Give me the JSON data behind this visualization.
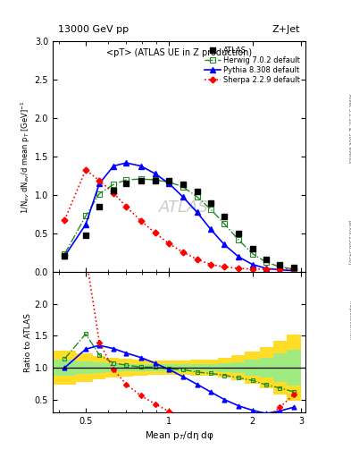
{
  "title_top": "13000 GeV pp",
  "title_right": "Z+Jet",
  "subtitle": "<pT> (ATLAS UE in Z production)",
  "ylabel_main": "1/N$_{ev}$ dN$_{ev}$/d mean p$_T$ [GeV]$^{-1}$",
  "ylabel_ratio": "Ratio to ATLAS",
  "xlabel": "Mean p$_{T}$/dη dφ",
  "right_label": "Rivet 3.1.10, ≥ 300k events",
  "arxiv_label": "[arXiv:1306.3436]",
  "mcplots_label": "mcplots.cern.ch",
  "watermark": "ATLAS",
  "atlas_x": [
    0.42,
    0.5,
    0.56,
    0.63,
    0.7,
    0.79,
    0.89,
    1.0,
    1.12,
    1.26,
    1.41,
    1.58,
    1.78,
    2.0,
    2.24,
    2.51,
    2.82
  ],
  "atlas_y": [
    0.21,
    0.48,
    0.85,
    1.06,
    1.15,
    1.19,
    1.19,
    1.19,
    1.14,
    1.05,
    0.9,
    0.72,
    0.5,
    0.3,
    0.17,
    0.1,
    0.06
  ],
  "herwig_x": [
    0.42,
    0.5,
    0.56,
    0.63,
    0.7,
    0.79,
    0.89,
    1.0,
    1.12,
    1.26,
    1.41,
    1.58,
    1.78,
    2.0,
    2.24,
    2.51,
    2.82
  ],
  "herwig_y": [
    0.24,
    0.73,
    1.02,
    1.14,
    1.2,
    1.21,
    1.2,
    1.17,
    1.11,
    0.98,
    0.82,
    0.63,
    0.42,
    0.24,
    0.13,
    0.07,
    0.04
  ],
  "pythia_x": [
    0.42,
    0.5,
    0.56,
    0.63,
    0.7,
    0.79,
    0.89,
    1.0,
    1.12,
    1.26,
    1.41,
    1.58,
    1.78,
    2.0,
    2.24,
    2.51,
    2.82
  ],
  "pythia_y": [
    0.21,
    0.62,
    1.15,
    1.38,
    1.42,
    1.38,
    1.28,
    1.15,
    0.98,
    0.78,
    0.56,
    0.36,
    0.2,
    0.1,
    0.05,
    0.03,
    0.02
  ],
  "sherpa_x": [
    0.42,
    0.5,
    0.56,
    0.63,
    0.7,
    0.79,
    0.89,
    1.0,
    1.12,
    1.26,
    1.41,
    1.58,
    1.78,
    2.0,
    2.24,
    2.51,
    2.82
  ],
  "sherpa_y": [
    0.68,
    1.33,
    1.19,
    1.03,
    0.85,
    0.67,
    0.51,
    0.37,
    0.26,
    0.17,
    0.1,
    0.07,
    0.05,
    0.04,
    0.04,
    0.04,
    0.04
  ],
  "herwig_ratio": [
    1.14,
    1.53,
    1.2,
    1.07,
    1.04,
    1.01,
    1.01,
    0.98,
    0.97,
    0.93,
    0.91,
    0.88,
    0.84,
    0.8,
    0.73,
    0.68,
    0.62
  ],
  "pythia_ratio": [
    1.0,
    1.29,
    1.35,
    1.3,
    1.23,
    1.16,
    1.07,
    0.97,
    0.86,
    0.74,
    0.62,
    0.5,
    0.4,
    0.33,
    0.28,
    0.32,
    0.38
  ],
  "sherpa_ratio": [
    3.24,
    2.77,
    1.4,
    0.97,
    0.74,
    0.56,
    0.43,
    0.31,
    0.23,
    0.16,
    0.11,
    0.09,
    0.1,
    0.13,
    0.21,
    0.38,
    0.58
  ],
  "band_x_lo": [
    0.38,
    0.46,
    0.53,
    0.59,
    0.66,
    0.74,
    0.84,
    0.94,
    1.06,
    1.19,
    1.33,
    1.5,
    1.68,
    1.88,
    2.12,
    2.37,
    2.66
  ],
  "band_x_hi": [
    0.46,
    0.53,
    0.59,
    0.66,
    0.74,
    0.84,
    0.94,
    1.06,
    1.19,
    1.33,
    1.5,
    1.68,
    1.88,
    2.12,
    2.37,
    2.66,
    2.99
  ],
  "band_green_lo": [
    0.87,
    0.9,
    0.92,
    0.93,
    0.94,
    0.95,
    0.95,
    0.95,
    0.95,
    0.95,
    0.94,
    0.93,
    0.91,
    0.88,
    0.84,
    0.78,
    0.72
  ],
  "band_green_hi": [
    1.13,
    1.1,
    1.08,
    1.07,
    1.06,
    1.05,
    1.05,
    1.05,
    1.05,
    1.05,
    1.06,
    1.07,
    1.09,
    1.12,
    1.16,
    1.22,
    1.28
  ],
  "band_yellow_lo": [
    0.73,
    0.78,
    0.82,
    0.84,
    0.86,
    0.88,
    0.89,
    0.89,
    0.89,
    0.88,
    0.87,
    0.84,
    0.8,
    0.75,
    0.68,
    0.58,
    0.48
  ],
  "band_yellow_hi": [
    1.27,
    1.22,
    1.18,
    1.16,
    1.14,
    1.12,
    1.11,
    1.11,
    1.11,
    1.12,
    1.13,
    1.16,
    1.2,
    1.25,
    1.32,
    1.42,
    1.52
  ],
  "atlas_color": "#000000",
  "herwig_color": "#228B22",
  "pythia_color": "#0000FF",
  "sherpa_color": "#FF0000",
  "ylim_main": [
    0.0,
    3.0
  ],
  "ylim_ratio": [
    0.3,
    2.5
  ],
  "xlim_log": [
    0.38,
    3.1
  ],
  "main_yticks": [
    0.0,
    0.5,
    1.0,
    1.5,
    2.0,
    2.5,
    3.0
  ],
  "ratio_yticks": [
    0.5,
    1.0,
    1.5,
    2.0
  ]
}
